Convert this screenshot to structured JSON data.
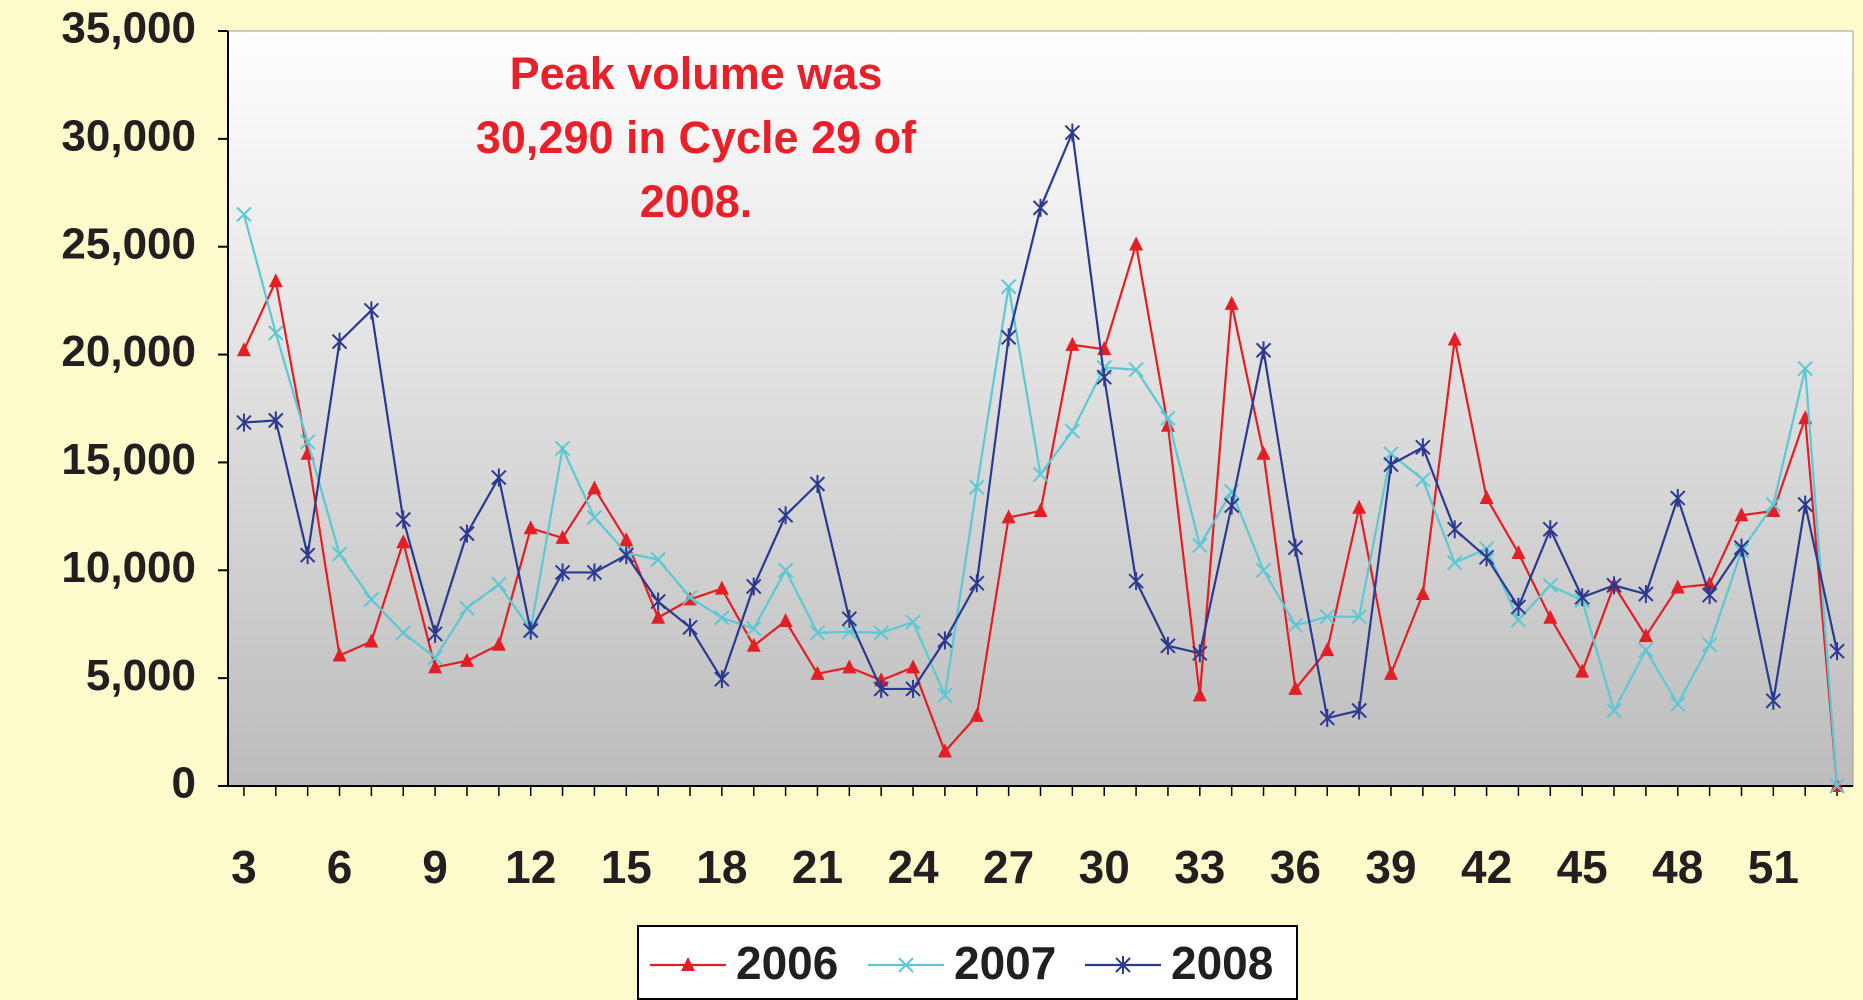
{
  "chart_data": {
    "type": "line",
    "annotation": [
      "Peak volume was",
      "30,290 in Cycle 29 of",
      "2008."
    ],
    "x": [
      3,
      4,
      5,
      6,
      7,
      8,
      9,
      10,
      11,
      12,
      13,
      14,
      15,
      16,
      17,
      18,
      19,
      20,
      21,
      22,
      23,
      24,
      25,
      26,
      27,
      28,
      29,
      30,
      31,
      32,
      33,
      34,
      35,
      36,
      37,
      38,
      39,
      40,
      41,
      42,
      43,
      44,
      45,
      46,
      47,
      48,
      49,
      50,
      51,
      52,
      53
    ],
    "xlim": [
      2.5,
      53.5
    ],
    "xticks": [
      3,
      6,
      9,
      12,
      15,
      18,
      21,
      24,
      27,
      30,
      33,
      36,
      39,
      42,
      45,
      48,
      51
    ],
    "ylim": [
      0,
      35000
    ],
    "yticks": [
      0,
      {
        "value": 5000,
        "label": "5,000"
      },
      {
        "value": 10000,
        "label": "10,000"
      },
      {
        "value": 15000,
        "label": "15,000"
      },
      {
        "value": 20000,
        "label": "20,000"
      },
      {
        "value": 25000,
        "label": "25,000"
      },
      {
        "value": 30000,
        "label": "30,000"
      },
      {
        "value": 35000,
        "label": "35,000"
      }
    ],
    "grid": false,
    "legend": "bottom",
    "series": [
      {
        "name": "2006",
        "color": "#e31e24",
        "marker": "triangle",
        "values": [
          20200,
          23400,
          15400,
          6050,
          6700,
          11300,
          5500,
          5800,
          6550,
          11950,
          11500,
          13800,
          11400,
          7800,
          8650,
          9150,
          6500,
          7650,
          5200,
          5500,
          4900,
          5500,
          1600,
          3250,
          12450,
          12750,
          20450,
          20250,
          25100,
          16700,
          4200,
          22350,
          15400,
          4500,
          6300,
          12900,
          5200,
          8900,
          20700,
          13350,
          10800,
          7800,
          5300,
          9300,
          6950,
          9200,
          9350,
          12550,
          12750,
          17050,
          0
        ]
      },
      {
        "name": "2007",
        "color": "#5bc8d4",
        "marker": "x",
        "values": [
          26500,
          21000,
          15950,
          10750,
          8650,
          7100,
          5950,
          8250,
          9350,
          7250,
          15650,
          12450,
          10800,
          10500,
          8750,
          7800,
          7300,
          10000,
          7100,
          7150,
          7100,
          7600,
          4200,
          13850,
          23150,
          14450,
          16450,
          19400,
          19300,
          17050,
          11150,
          13650,
          10000,
          7450,
          7850,
          7850,
          15400,
          14200,
          10350,
          11000,
          7700,
          9300,
          8600,
          3500,
          6300,
          3800,
          6550,
          10900,
          13050,
          19350,
          0
        ]
      },
      {
        "name": "2008",
        "color": "#2b3990",
        "marker": "asterisk",
        "values": [
          16850,
          16950,
          10700,
          20600,
          22050,
          12350,
          7050,
          11700,
          14300,
          7200,
          9900,
          9900,
          10700,
          8550,
          7350,
          4950,
          9250,
          12550,
          14000,
          7750,
          4500,
          4500,
          6750,
          9400,
          20800,
          26800,
          30290,
          18950,
          9500,
          6500,
          6150,
          13000,
          20200,
          11050,
          3150,
          3500,
          14900,
          15700,
          11900,
          10600,
          8300,
          11900,
          8750,
          9300,
          8900,
          13350,
          8850,
          11050,
          3950,
          13050,
          6250
        ]
      }
    ]
  }
}
